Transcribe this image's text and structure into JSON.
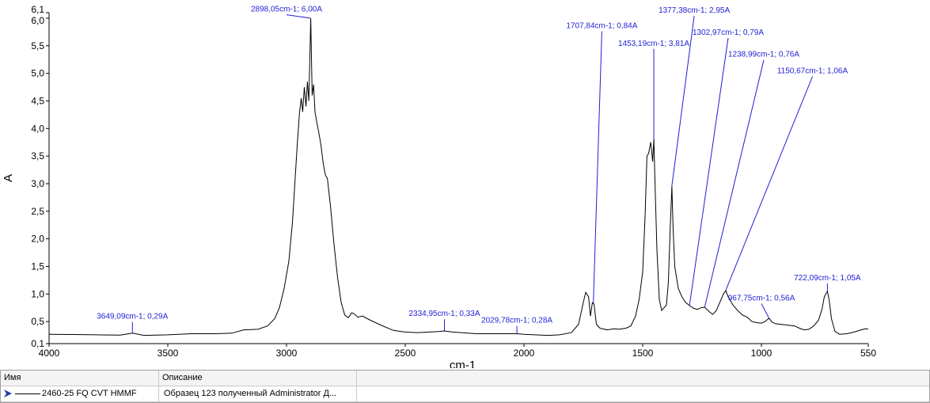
{
  "chart_data": {
    "type": "line",
    "xlabel": "cm-1",
    "ylabel": "A",
    "xlim": [
      4000,
      550
    ],
    "ylim": [
      0.1,
      6.1
    ],
    "x_ticks": [
      4000,
      3500,
      3000,
      2500,
      2000,
      1500,
      1000,
      550
    ],
    "x_tick_labels": [
      "4000",
      "3500",
      "3000",
      "2500",
      "2000",
      "1500",
      "1000",
      "550"
    ],
    "y_ticks": [
      0.1,
      0.5,
      1.0,
      1.5,
      2.0,
      2.5,
      3.0,
      3.5,
      4.0,
      4.5,
      5.0,
      5.5,
      6.0,
      6.1
    ],
    "y_tick_labels": [
      "0,1",
      "0,5",
      "1,0",
      "1,5",
      "2,0",
      "2,5",
      "3,0",
      "3,5",
      "4,0",
      "4,5",
      "5,0",
      "5,5",
      "6,0",
      "6,1"
    ],
    "grid": false,
    "series": [
      {
        "name": "2460-25 FQ CVT HMMF",
        "points": [
          [
            4000,
            0.27
          ],
          [
            3900,
            0.265
          ],
          [
            3800,
            0.26
          ],
          [
            3700,
            0.255
          ],
          [
            3649,
            0.29
          ],
          [
            3600,
            0.25
          ],
          [
            3500,
            0.26
          ],
          [
            3400,
            0.28
          ],
          [
            3300,
            0.28
          ],
          [
            3230,
            0.29
          ],
          [
            3180,
            0.35
          ],
          [
            3120,
            0.36
          ],
          [
            3080,
            0.42
          ],
          [
            3050,
            0.55
          ],
          [
            3030,
            0.75
          ],
          [
            3010,
            1.1
          ],
          [
            2990,
            1.6
          ],
          [
            2975,
            2.3
          ],
          [
            2965,
            3.0
          ],
          [
            2955,
            3.7
          ],
          [
            2945,
            4.3
          ],
          [
            2938,
            4.55
          ],
          [
            2932,
            4.3
          ],
          [
            2925,
            4.75
          ],
          [
            2918,
            4.4
          ],
          [
            2912,
            4.85
          ],
          [
            2906,
            4.5
          ],
          [
            2898,
            6.0
          ],
          [
            2892,
            4.6
          ],
          [
            2886,
            4.8
          ],
          [
            2880,
            4.3
          ],
          [
            2872,
            4.1
          ],
          [
            2865,
            3.95
          ],
          [
            2855,
            3.7
          ],
          [
            2845,
            3.35
          ],
          [
            2836,
            3.15
          ],
          [
            2828,
            3.1
          ],
          [
            2815,
            2.6
          ],
          [
            2800,
            1.9
          ],
          [
            2785,
            1.3
          ],
          [
            2770,
            0.85
          ],
          [
            2755,
            0.62
          ],
          [
            2740,
            0.57
          ],
          [
            2725,
            0.66
          ],
          [
            2715,
            0.64
          ],
          [
            2700,
            0.58
          ],
          [
            2680,
            0.6
          ],
          [
            2650,
            0.53
          ],
          [
            2600,
            0.43
          ],
          [
            2550,
            0.34
          ],
          [
            2500,
            0.31
          ],
          [
            2450,
            0.3
          ],
          [
            2400,
            0.31
          ],
          [
            2360,
            0.32
          ],
          [
            2335,
            0.33
          ],
          [
            2300,
            0.31
          ],
          [
            2200,
            0.28
          ],
          [
            2100,
            0.28
          ],
          [
            2030,
            0.28
          ],
          [
            2000,
            0.27
          ],
          [
            1900,
            0.25
          ],
          [
            1850,
            0.26
          ],
          [
            1800,
            0.3
          ],
          [
            1770,
            0.45
          ],
          [
            1750,
            0.85
          ],
          [
            1740,
            1.03
          ],
          [
            1728,
            0.95
          ],
          [
            1720,
            0.6
          ],
          [
            1712,
            0.84
          ],
          [
            1705,
            0.82
          ],
          [
            1695,
            0.45
          ],
          [
            1680,
            0.38
          ],
          [
            1650,
            0.35
          ],
          [
            1620,
            0.37
          ],
          [
            1600,
            0.36
          ],
          [
            1570,
            0.38
          ],
          [
            1550,
            0.42
          ],
          [
            1530,
            0.6
          ],
          [
            1515,
            0.9
          ],
          [
            1500,
            1.4
          ],
          [
            1490,
            2.4
          ],
          [
            1482,
            3.5
          ],
          [
            1475,
            3.55
          ],
          [
            1466,
            3.75
          ],
          [
            1458,
            3.4
          ],
          [
            1453,
            3.81
          ],
          [
            1448,
            3.0
          ],
          [
            1440,
            1.8
          ],
          [
            1430,
            0.9
          ],
          [
            1420,
            0.7
          ],
          [
            1410,
            0.75
          ],
          [
            1400,
            0.8
          ],
          [
            1392,
            1.2
          ],
          [
            1384,
            2.2
          ],
          [
            1377,
            2.95
          ],
          [
            1372,
            2.2
          ],
          [
            1365,
            1.5
          ],
          [
            1350,
            1.1
          ],
          [
            1335,
            0.95
          ],
          [
            1320,
            0.85
          ],
          [
            1303,
            0.79
          ],
          [
            1285,
            0.74
          ],
          [
            1270,
            0.72
          ],
          [
            1255,
            0.75
          ],
          [
            1239,
            0.76
          ],
          [
            1220,
            0.68
          ],
          [
            1205,
            0.63
          ],
          [
            1190,
            0.7
          ],
          [
            1175,
            0.85
          ],
          [
            1160,
            1.0
          ],
          [
            1150,
            1.06
          ],
          [
            1140,
            0.95
          ],
          [
            1120,
            0.8
          ],
          [
            1100,
            0.7
          ],
          [
            1080,
            0.62
          ],
          [
            1060,
            0.58
          ],
          [
            1040,
            0.5
          ],
          [
            1020,
            0.48
          ],
          [
            1000,
            0.47
          ],
          [
            985,
            0.5
          ],
          [
            968,
            0.56
          ],
          [
            955,
            0.49
          ],
          [
            940,
            0.46
          ],
          [
            920,
            0.45
          ],
          [
            900,
            0.44
          ],
          [
            880,
            0.43
          ],
          [
            860,
            0.42
          ],
          [
            840,
            0.38
          ],
          [
            820,
            0.35
          ],
          [
            800,
            0.36
          ],
          [
            780,
            0.42
          ],
          [
            760,
            0.52
          ],
          [
            745,
            0.72
          ],
          [
            735,
            0.95
          ],
          [
            722,
            1.05
          ],
          [
            715,
            0.9
          ],
          [
            705,
            0.55
          ],
          [
            690,
            0.32
          ],
          [
            670,
            0.27
          ],
          [
            640,
            0.28
          ],
          [
            610,
            0.31
          ],
          [
            580,
            0.35
          ],
          [
            560,
            0.37
          ],
          [
            550,
            0.36
          ]
        ]
      }
    ],
    "annotations": [
      {
        "label": "3649,09cm-1; 0,29A",
        "x": 3649.09,
        "y": 0.29,
        "label_x": 3649.09,
        "label_y": 0.55
      },
      {
        "label": "2898,05cm-1; 6,00A",
        "x": 2898.05,
        "y": 6.0,
        "label_x": 3000,
        "label_y": 6.12
      },
      {
        "label": "2334,95cm-1; 0,33A",
        "x": 2334.95,
        "y": 0.33,
        "label_x": 2334.95,
        "label_y": 0.6
      },
      {
        "label": "2029,78cm-1; 0,28A",
        "x": 2029.78,
        "y": 0.28,
        "label_x": 2029.78,
        "label_y": 0.48
      },
      {
        "label": "1707,84cm-1; 0,84A",
        "x": 1707.84,
        "y": 0.84,
        "label_x": 1672,
        "label_y": 5.82
      },
      {
        "label": "1453,19cm-1; 3,81A",
        "x": 1453.19,
        "y": 3.81,
        "label_x": 1453.19,
        "label_y": 5.5
      },
      {
        "label": "1377,38cm-1; 2,95A",
        "x": 1377.38,
        "y": 2.95,
        "label_x": 1283,
        "label_y": 6.1
      },
      {
        "label": "1302,97cm-1; 0,79A",
        "x": 1302.97,
        "y": 0.79,
        "label_x": 1140,
        "label_y": 5.7
      },
      {
        "label": "1238,99cm-1; 0,76A",
        "x": 1238.99,
        "y": 0.76,
        "label_x": 990,
        "label_y": 5.3
      },
      {
        "label": "1150,67cm-1; 1,06A",
        "x": 1150.67,
        "y": 1.06,
        "label_x": 785,
        "label_y": 5.0
      },
      {
        "label": "967,75cm-1; 0,56A",
        "x": 967.75,
        "y": 0.56,
        "label_x": 1000,
        "label_y": 0.88
      },
      {
        "label": "722,09cm-1; 1,05A",
        "x": 722.09,
        "y": 1.05,
        "label_x": 722.09,
        "label_y": 1.25
      }
    ]
  },
  "legend_table": {
    "headers": [
      "Имя",
      "Описание"
    ],
    "rows": [
      {
        "name": "2460-25 FQ CVT HMMF",
        "description": "Образец 123 полученный Administrator Д..."
      }
    ]
  }
}
